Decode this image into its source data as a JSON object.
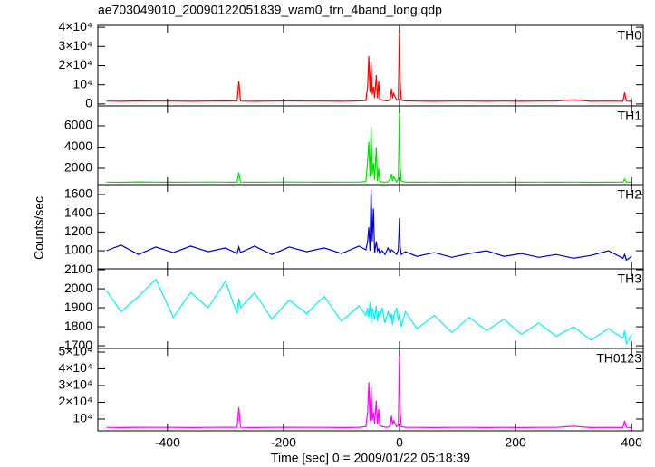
{
  "title": "ae703049010_20090122051839_wam0_trn_4band_long.qdp",
  "x_label": "Time [sec] 0 = 2009/01/22 05:18:39",
  "y_label": "Counts/sec",
  "xlim": [
    -520,
    420
  ],
  "xticks": [
    -400,
    -200,
    0,
    200,
    400
  ],
  "chart_data": [
    {
      "type": "line",
      "name": "TH0",
      "color": "#ff0000",
      "x": [
        -505,
        -480,
        -450,
        -420,
        -390,
        -360,
        -330,
        -300,
        -280,
        -277,
        -274,
        -250,
        -220,
        -190,
        -160,
        -130,
        -100,
        -70,
        -58,
        -55,
        -53,
        -51,
        -49,
        -47,
        -45,
        -43,
        -40,
        -38,
        -36,
        -34,
        -30,
        -25,
        -20,
        -16,
        -14,
        -12,
        -10,
        -5,
        -2,
        0,
        1,
        3,
        10,
        30,
        60,
        90,
        120,
        150,
        180,
        210,
        240,
        270,
        300,
        330,
        360,
        385,
        388,
        391,
        400
      ],
      "values": [
        1500,
        1400,
        1600,
        1500,
        1500,
        1400,
        1500,
        1600,
        1500,
        12000,
        1500,
        1400,
        1500,
        1600,
        1500,
        1500,
        1400,
        1600,
        1800,
        9000,
        25000,
        6000,
        22000,
        5000,
        9000,
        3000,
        15000,
        3000,
        12000,
        2500,
        2000,
        1800,
        1600,
        2500,
        8000,
        3000,
        5500,
        2000,
        2500,
        41000,
        12000,
        2000,
        1600,
        1500,
        1400,
        1500,
        1500,
        1400,
        1500,
        1400,
        1500,
        1500,
        2200,
        1400,
        1500,
        1400,
        6000,
        1500,
        1400
      ],
      "ylim": [
        -1000,
        41000
      ],
      "yticks": [
        0,
        {
          "value": 10000,
          "label": "10⁴"
        },
        {
          "value": 20000,
          "label": "2×10⁴"
        },
        {
          "value": 30000,
          "label": "3×10⁴"
        },
        {
          "value": 40000,
          "label": "4×10⁴"
        }
      ]
    },
    {
      "type": "line",
      "name": "TH1",
      "color": "#00e000",
      "x": [
        -505,
        -480,
        -450,
        -420,
        -390,
        -360,
        -330,
        -300,
        -280,
        -277,
        -274,
        -250,
        -220,
        -190,
        -160,
        -130,
        -100,
        -70,
        -58,
        -55,
        -53,
        -51,
        -49,
        -47,
        -45,
        -43,
        -40,
        -38,
        -36,
        -34,
        -30,
        -25,
        -20,
        -16,
        -14,
        -12,
        -10,
        -5,
        -2,
        0,
        1,
        3,
        10,
        30,
        60,
        90,
        120,
        150,
        180,
        210,
        240,
        270,
        300,
        330,
        360,
        385,
        388,
        391,
        400
      ],
      "values": [
        700,
        680,
        720,
        700,
        690,
        700,
        710,
        700,
        690,
        1600,
        700,
        690,
        700,
        710,
        700,
        690,
        700,
        700,
        750,
        2700,
        4500,
        1200,
        5900,
        1400,
        2500,
        900,
        4000,
        800,
        2000,
        750,
        720,
        700,
        720,
        1000,
        1500,
        800,
        1200,
        720,
        1000,
        7800,
        2200,
        800,
        700,
        690,
        700,
        680,
        700,
        690,
        700,
        690,
        700,
        690,
        700,
        680,
        690,
        700,
        1000,
        700,
        690
      ],
      "ylim": [
        470,
        7870
      ],
      "yticks": [
        2000,
        4000,
        6000
      ]
    },
    {
      "type": "line",
      "name": "TH2",
      "color": "#0000d0",
      "x": [
        -505,
        -480,
        -450,
        -420,
        -390,
        -360,
        -330,
        -300,
        -280,
        -277,
        -274,
        -250,
        -220,
        -190,
        -160,
        -130,
        -100,
        -70,
        -58,
        -55,
        -53,
        -51,
        -49,
        -47,
        -45,
        -43,
        -40,
        -38,
        -36,
        -34,
        -30,
        -25,
        -20,
        -16,
        -14,
        -12,
        -10,
        -5,
        -2,
        0,
        1,
        3,
        10,
        30,
        60,
        90,
        120,
        150,
        180,
        210,
        240,
        270,
        300,
        330,
        360,
        385,
        388,
        391,
        400
      ],
      "values": [
        1000,
        1060,
        960,
        1040,
        980,
        1050,
        990,
        1030,
        970,
        1040,
        980,
        1050,
        960,
        1040,
        990,
        1030,
        970,
        1050,
        1010,
        1100,
        1250,
        1000,
        1650,
        1100,
        1450,
        980,
        1100,
        1000,
        1020,
        970,
        1000,
        960,
        1030,
        980,
        1010,
        1000,
        990,
        960,
        1010,
        1350,
        1050,
        960,
        990,
        940,
        980,
        930,
        970,
        1000,
        940,
        970,
        930,
        960,
        920,
        950,
        1000,
        920,
        960,
        900,
        940
      ],
      "ylim": [
        807,
        1706
      ],
      "yticks": [
        1000,
        1200,
        1400,
        1600
      ]
    },
    {
      "type": "line",
      "name": "TH3",
      "color": "#00f0f0",
      "x": [
        -505,
        -480,
        -450,
        -420,
        -390,
        -360,
        -330,
        -300,
        -280,
        -277,
        -274,
        -250,
        -220,
        -190,
        -160,
        -130,
        -100,
        -70,
        -58,
        -55,
        -53,
        -51,
        -49,
        -47,
        -45,
        -43,
        -40,
        -38,
        -36,
        -34,
        -30,
        -25,
        -20,
        -16,
        -14,
        -12,
        -10,
        -5,
        -2,
        0,
        1,
        3,
        10,
        30,
        60,
        90,
        120,
        150,
        180,
        210,
        240,
        270,
        300,
        330,
        360,
        385,
        388,
        391,
        400
      ],
      "values": [
        1990,
        1880,
        1960,
        2050,
        1850,
        1980,
        1900,
        2040,
        1870,
        1950,
        1900,
        1980,
        1840,
        1940,
        1870,
        1960,
        1830,
        1910,
        1860,
        1900,
        1850,
        1930,
        1820,
        1900,
        1870,
        1840,
        1910,
        1830,
        1880,
        1850,
        1900,
        1820,
        1880,
        1840,
        1870,
        1810,
        1860,
        1900,
        1830,
        1870,
        1840,
        1800,
        1880,
        1790,
        1860,
        1770,
        1850,
        1780,
        1840,
        1760,
        1820,
        1750,
        1800,
        1730,
        1790,
        1740,
        1780,
        1710,
        1760
      ],
      "ylim": [
        1686,
        2105
      ],
      "yticks": [
        1700,
        1800,
        1900,
        2000,
        2100
      ]
    },
    {
      "type": "line",
      "name": "TH0123",
      "color": "#ff00ff",
      "x": [
        -505,
        -480,
        -450,
        -420,
        -390,
        -360,
        -330,
        -300,
        -280,
        -277,
        -274,
        -250,
        -220,
        -190,
        -160,
        -130,
        -100,
        -70,
        -58,
        -55,
        -53,
        -51,
        -49,
        -47,
        -45,
        -43,
        -40,
        -38,
        -36,
        -34,
        -30,
        -25,
        -20,
        -16,
        -14,
        -12,
        -10,
        -5,
        -2,
        0,
        1,
        3,
        10,
        30,
        60,
        90,
        120,
        150,
        180,
        210,
        240,
        270,
        300,
        330,
        360,
        385,
        388,
        391,
        400
      ],
      "values": [
        5000,
        4900,
        5100,
        5000,
        5000,
        4900,
        5000,
        5100,
        5000,
        17000,
        5000,
        4900,
        5000,
        5100,
        5000,
        5000,
        4900,
        5100,
        5500,
        14000,
        32000,
        9000,
        29000,
        9000,
        14000,
        7000,
        21000,
        7000,
        16000,
        6000,
        5500,
        5200,
        5100,
        6000,
        12000,
        6500,
        9000,
        5500,
        6000,
        51000,
        15000,
        5500,
        5100,
        5000,
        4900,
        5000,
        5000,
        4900,
        5000,
        4900,
        5000,
        5000,
        5700,
        4900,
        5000,
        4900,
        9000,
        5000,
        4900
      ],
      "ylim": [
        2970,
        52160
      ],
      "yticks": [
        {
          "value": 10000,
          "label": "10⁴"
        },
        {
          "value": 20000,
          "label": "2×10⁴"
        },
        {
          "value": 30000,
          "label": "3×10⁴"
        },
        {
          "value": 40000,
          "label": "4×10⁴"
        },
        {
          "value": 50000,
          "label": "5×10⁴"
        }
      ]
    }
  ]
}
